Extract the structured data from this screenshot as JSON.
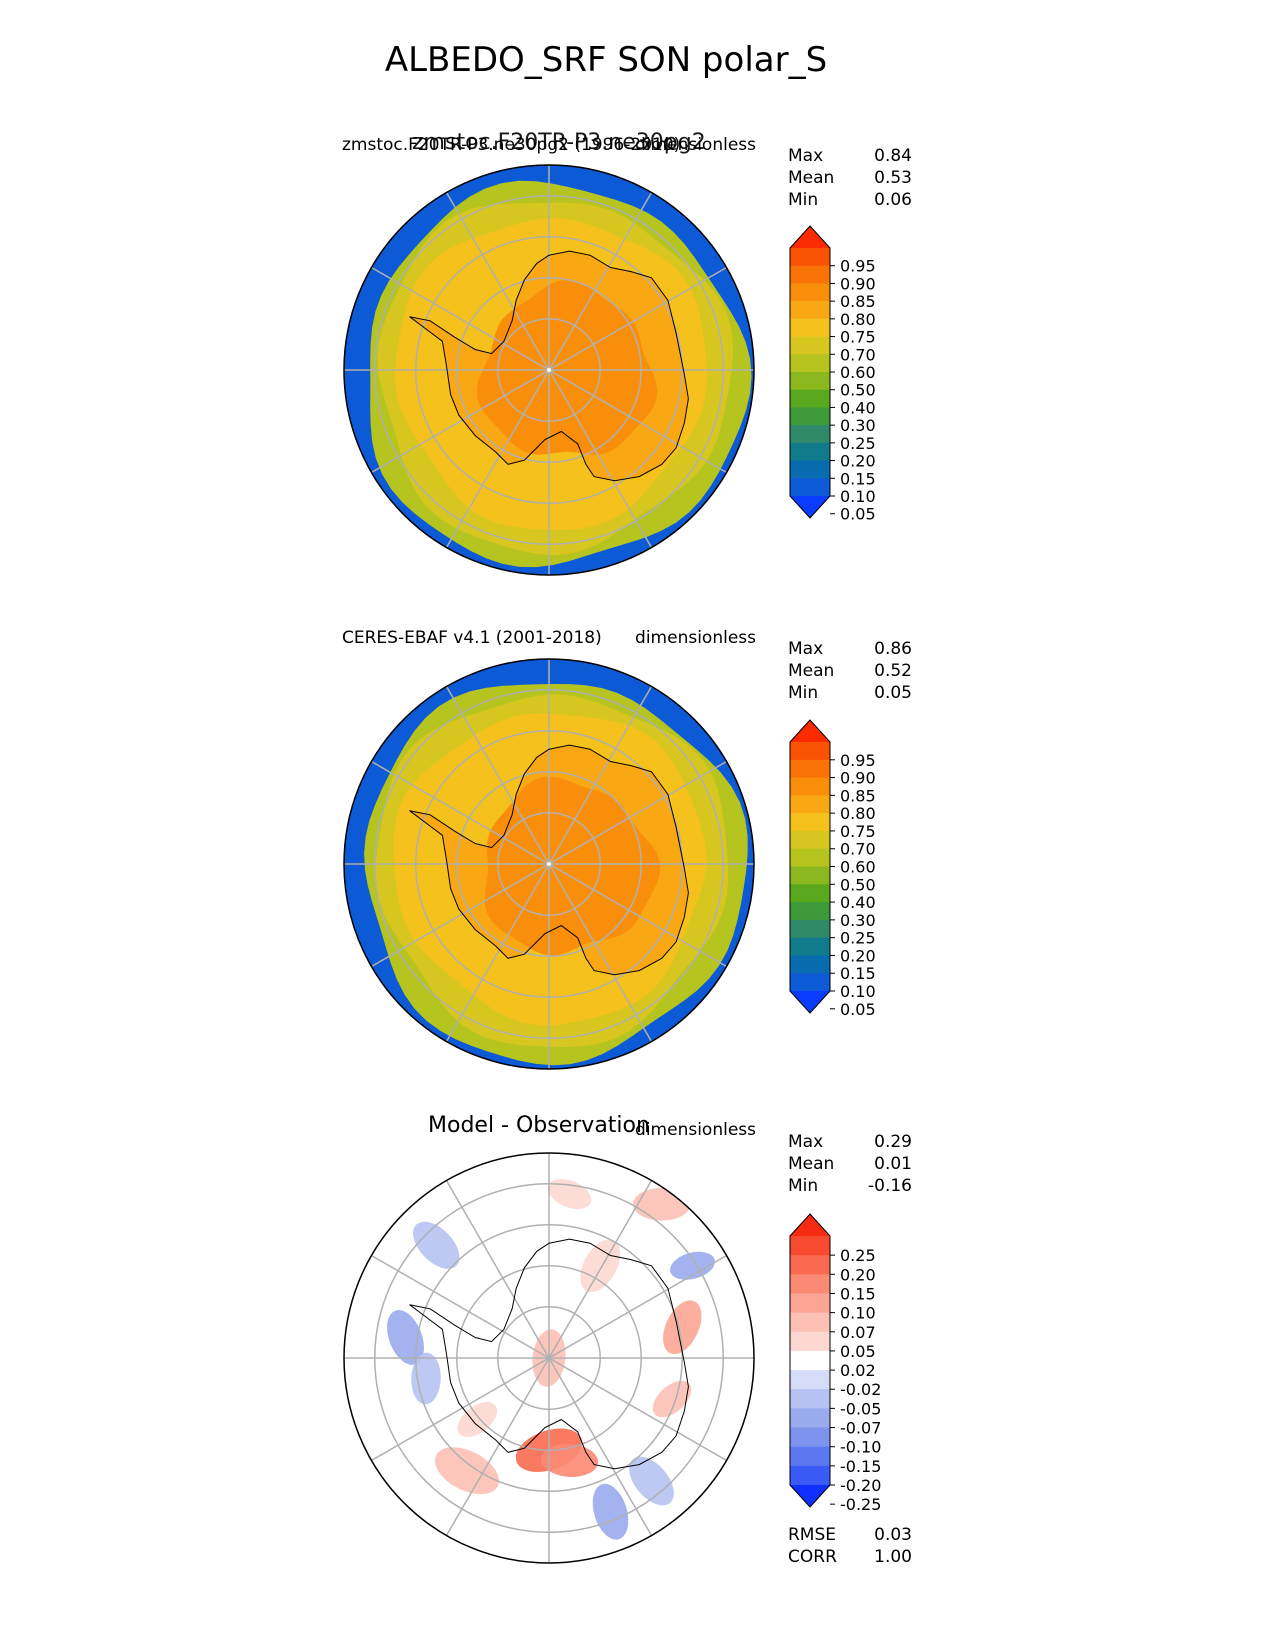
{
  "title": "ALBEDO_SRF SON polar_S",
  "panels": [
    {
      "id": "test",
      "left_label": "zmstoc.F20TR-P3.ne30pg2 (1996-2010)",
      "center_label": "zmstoc.F20TR-P3.ne30pg2",
      "right_label": "dimensionless",
      "stats": [
        {
          "label": "Max",
          "value": "0.84"
        },
        {
          "label": "Mean",
          "value": "0.53"
        },
        {
          "label": "Min",
          "value": "0.06"
        }
      ],
      "colorbar_ticks": [
        "0.95",
        "0.90",
        "0.85",
        "0.80",
        "0.75",
        "0.70",
        "0.60",
        "0.50",
        "0.40",
        "0.30",
        "0.25",
        "0.20",
        "0.15",
        "0.10",
        "0.05"
      ]
    },
    {
      "id": "reference",
      "left_label": "CERES-EBAF v4.1 (2001-2018)",
      "center_label": "",
      "right_label": "dimensionless",
      "stats": [
        {
          "label": "Max",
          "value": "0.86"
        },
        {
          "label": "Mean",
          "value": "0.52"
        },
        {
          "label": "Min",
          "value": "0.05"
        }
      ],
      "colorbar_ticks": [
        "0.95",
        "0.90",
        "0.85",
        "0.80",
        "0.75",
        "0.70",
        "0.60",
        "0.50",
        "0.40",
        "0.30",
        "0.25",
        "0.20",
        "0.15",
        "0.10",
        "0.05"
      ]
    },
    {
      "id": "diff",
      "left_label": "",
      "center_label": "Model - Observation",
      "right_label": "dimensionless",
      "stats": [
        {
          "label": "Max",
          "value": "0.29"
        },
        {
          "label": "Mean",
          "value": "0.01"
        },
        {
          "label": "Min",
          "value": "-0.16"
        }
      ],
      "colorbar_ticks": [
        "0.25",
        "0.20",
        "0.15",
        "0.10",
        "0.07",
        "0.05",
        "0.02",
        "-0.02",
        "-0.05",
        "-0.07",
        "-0.10",
        "-0.15",
        "-0.20",
        "-0.25"
      ],
      "metrics": [
        {
          "label": "RMSE",
          "value": "0.03"
        },
        {
          "label": "CORR",
          "value": "1.00"
        }
      ]
    }
  ],
  "chart_data": [
    {
      "type": "heatmap",
      "projection": "south polar stereographic",
      "title": "zmstoc.F20TR-P3.ne30pg2",
      "variable": "ALBEDO_SRF",
      "units": "dimensionless",
      "levels": [
        0.05,
        0.1,
        0.15,
        0.2,
        0.25,
        0.3,
        0.4,
        0.5,
        0.6,
        0.7,
        0.75,
        0.8,
        0.85,
        0.9,
        0.95
      ],
      "colors": [
        "#0a3cff",
        "#0d5ad6",
        "#0a6cb0",
        "#117b8c",
        "#2f8a6a",
        "#3d9a3a",
        "#5aa81e",
        "#8bb81e",
        "#b5c41e",
        "#d7c61f",
        "#f5c21d",
        "#f9a814",
        "#f98e0b",
        "#f97306",
        "#f95200",
        "#fb2a00"
      ],
      "stats": {
        "max": 0.84,
        "mean": 0.53,
        "min": 0.06
      }
    },
    {
      "type": "heatmap",
      "projection": "south polar stereographic",
      "title": "CERES-EBAF v4.1 (2001-2018)",
      "variable": "ALBEDO_SRF",
      "units": "dimensionless",
      "levels": [
        0.05,
        0.1,
        0.15,
        0.2,
        0.25,
        0.3,
        0.4,
        0.5,
        0.6,
        0.7,
        0.75,
        0.8,
        0.85,
        0.9,
        0.95
      ],
      "colors": [
        "#0a3cff",
        "#0d5ad6",
        "#0a6cb0",
        "#117b8c",
        "#2f8a6a",
        "#3d9a3a",
        "#5aa81e",
        "#8bb81e",
        "#b5c41e",
        "#d7c61f",
        "#f5c21d",
        "#f9a814",
        "#f98e0b",
        "#f97306",
        "#f95200",
        "#fb2a00"
      ],
      "stats": {
        "max": 0.86,
        "mean": 0.52,
        "min": 0.05
      }
    },
    {
      "type": "heatmap",
      "projection": "south polar stereographic",
      "title": "Model - Observation",
      "variable": "ALBEDO_SRF",
      "units": "dimensionless",
      "levels": [
        -0.25,
        -0.2,
        -0.15,
        -0.1,
        -0.07,
        -0.05,
        -0.02,
        0.02,
        0.05,
        0.07,
        0.1,
        0.15,
        0.2,
        0.25
      ],
      "colors": [
        "#1030ff",
        "#3a5af5",
        "#5b78f0",
        "#7d93ee",
        "#9aabee",
        "#b6c2f2",
        "#d4dcf8",
        "#ffffff",
        "#fdd8d2",
        "#fcc0b5",
        "#fca595",
        "#fb8a74",
        "#fa6a50",
        "#f84a2e",
        "#f52a10"
      ],
      "stats": {
        "max": 0.29,
        "mean": 0.01,
        "min": -0.16
      },
      "metrics": {
        "rmse": 0.03,
        "corr": 1.0
      }
    }
  ]
}
